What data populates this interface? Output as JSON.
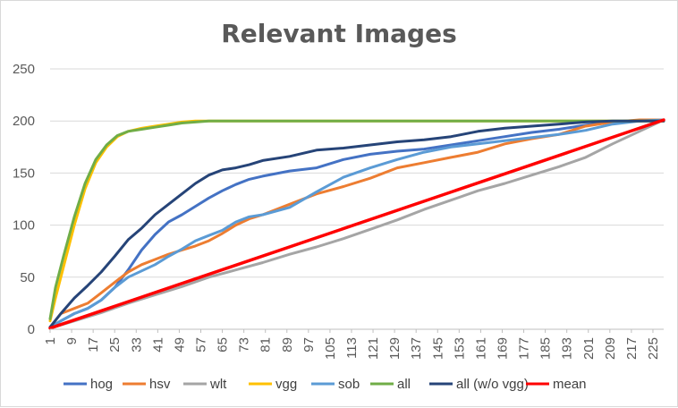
{
  "chart_data": {
    "type": "line",
    "title": "Relevant Images",
    "xlabel": "",
    "ylabel": "",
    "xlim": [
      1,
      229
    ],
    "ylim": [
      0,
      250
    ],
    "yticks": [
      0,
      50,
      100,
      150,
      200,
      250
    ],
    "xticks": [
      1,
      9,
      17,
      25,
      33,
      41,
      49,
      57,
      65,
      73,
      81,
      89,
      97,
      105,
      113,
      121,
      129,
      137,
      145,
      153,
      161,
      169,
      177,
      185,
      193,
      201,
      209,
      217,
      225
    ],
    "grid": "horizontal",
    "legend": "bottom",
    "series": [
      {
        "name": "hog",
        "color": "#4472c4",
        "x": [
          1,
          5,
          10,
          15,
          20,
          25,
          30,
          35,
          40,
          45,
          50,
          55,
          60,
          65,
          70,
          75,
          80,
          90,
          100,
          110,
          120,
          130,
          140,
          150,
          160,
          170,
          180,
          190,
          200,
          210,
          220,
          229
        ],
        "y": [
          2,
          8,
          15,
          20,
          28,
          40,
          57,
          76,
          91,
          103,
          110,
          118,
          126,
          133,
          139,
          144,
          147,
          152,
          155,
          163,
          168,
          171,
          173,
          177,
          181,
          185,
          189,
          192,
          196,
          199,
          200,
          201
        ]
      },
      {
        "name": "hsv",
        "color": "#ed7d31",
        "x": [
          1,
          5,
          10,
          15,
          20,
          25,
          30,
          35,
          40,
          45,
          50,
          55,
          60,
          65,
          70,
          75,
          80,
          90,
          100,
          110,
          120,
          130,
          140,
          150,
          160,
          170,
          180,
          190,
          200,
          210,
          220,
          229
        ],
        "y": [
          2,
          15,
          20,
          25,
          35,
          45,
          55,
          62,
          67,
          72,
          76,
          80,
          85,
          92,
          100,
          106,
          110,
          120,
          130,
          137,
          145,
          155,
          160,
          165,
          170,
          178,
          183,
          187,
          195,
          199,
          201,
          201
        ]
      },
      {
        "name": "wlt",
        "color": "#a5a5a5",
        "x": [
          1,
          10,
          20,
          30,
          40,
          50,
          60,
          70,
          80,
          90,
          100,
          110,
          120,
          130,
          140,
          150,
          160,
          170,
          180,
          190,
          200,
          210,
          220,
          229
        ],
        "y": [
          1,
          8,
          16,
          25,
          33,
          41,
          50,
          57,
          64,
          72,
          79,
          87,
          96,
          105,
          115,
          124,
          133,
          140,
          148,
          156,
          165,
          178,
          190,
          201
        ]
      },
      {
        "name": "vgg",
        "color": "#ffc000",
        "x": [
          1,
          3,
          6,
          10,
          14,
          18,
          22,
          26,
          30,
          35,
          40,
          45,
          50,
          55,
          60,
          80,
          100,
          229
        ],
        "y": [
          8,
          30,
          60,
          100,
          135,
          160,
          175,
          185,
          190,
          193,
          195,
          197,
          199,
          200,
          200,
          200,
          200,
          200
        ]
      },
      {
        "name": "sob",
        "color": "#5b9bd5",
        "x": [
          1,
          5,
          10,
          15,
          20,
          25,
          30,
          35,
          40,
          45,
          50,
          55,
          60,
          65,
          70,
          75,
          80,
          90,
          100,
          110,
          120,
          130,
          140,
          150,
          160,
          170,
          180,
          190,
          200,
          210,
          220,
          229
        ],
        "y": [
          2,
          8,
          15,
          20,
          28,
          40,
          50,
          56,
          62,
          70,
          77,
          85,
          90,
          95,
          103,
          108,
          110,
          117,
          132,
          146,
          155,
          163,
          170,
          175,
          178,
          181,
          184,
          187,
          191,
          197,
          200,
          201
        ]
      },
      {
        "name": "all",
        "color": "#70ad47",
        "x": [
          1,
          3,
          6,
          10,
          14,
          18,
          22,
          26,
          30,
          35,
          40,
          45,
          50,
          55,
          60,
          80,
          100,
          229
        ],
        "y": [
          10,
          40,
          70,
          108,
          140,
          163,
          177,
          186,
          190,
          192,
          194,
          196,
          198,
          199,
          200,
          200,
          200,
          200
        ]
      },
      {
        "name": "all (w/o vgg)",
        "color": "#264478",
        "x": [
          1,
          5,
          10,
          15,
          20,
          25,
          30,
          35,
          40,
          45,
          50,
          55,
          60,
          65,
          70,
          75,
          80,
          90,
          100,
          110,
          120,
          130,
          140,
          150,
          160,
          170,
          180,
          190,
          200,
          210,
          220,
          229
        ],
        "y": [
          2,
          15,
          30,
          42,
          55,
          70,
          86,
          97,
          110,
          120,
          130,
          140,
          148,
          153,
          155,
          158,
          162,
          166,
          172,
          174,
          177,
          180,
          182,
          185,
          190,
          193,
          195,
          197,
          199,
          200,
          200,
          200
        ]
      },
      {
        "name": "mean",
        "color": "#ff0000",
        "x": [
          1,
          229
        ],
        "y": [
          1,
          201
        ]
      }
    ]
  }
}
